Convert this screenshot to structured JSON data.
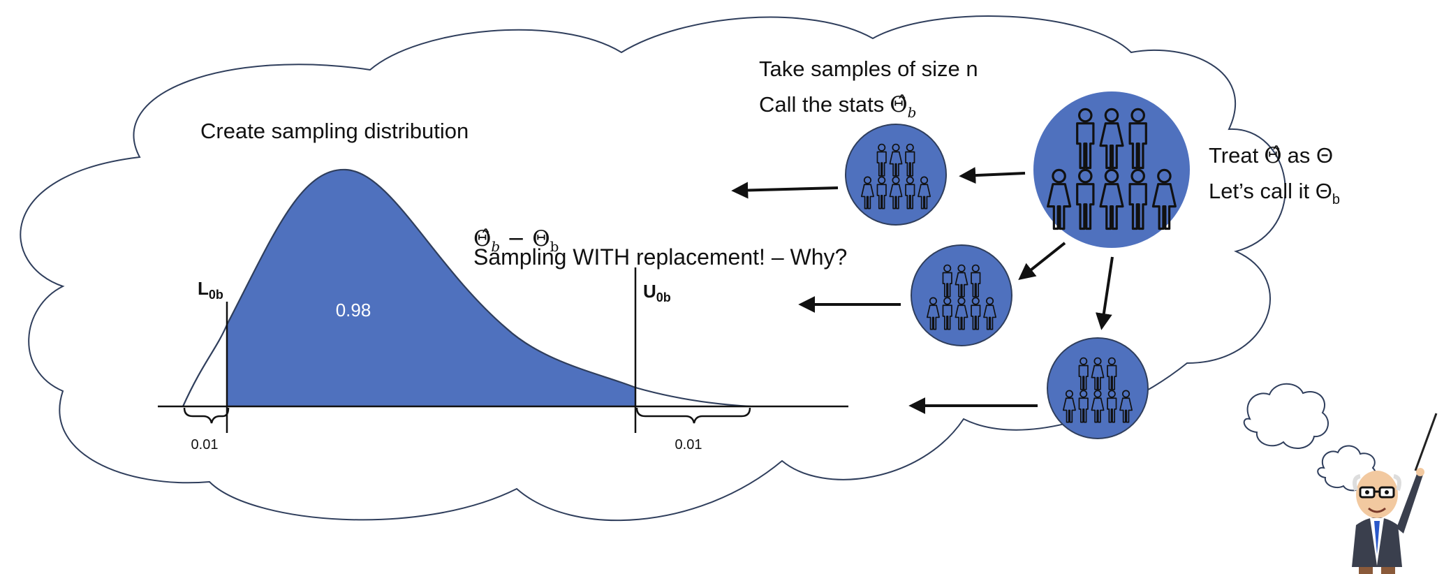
{
  "diagram": {
    "sampling_dist_title": "Create sampling distribution",
    "samples_line1": "Take samples of size n",
    "samples_line2_prefix": "Call the stats",
    "samples_line2_symbol": "Θ̂",
    "samples_line2_sub": "b",
    "treat_line1_prefix": "Treat",
    "treat_line1_hat": "Θ̂",
    "treat_line1_as": "as Θ",
    "treat_line2_prefix": "Let’s call it Θ",
    "treat_line2_sub": "b",
    "difference_hat": "Θ̂",
    "difference_hat_sub": "b",
    "difference_minus": "−",
    "difference_theta": "Θ",
    "difference_theta_sub": "b",
    "replacement_note": "Sampling WITH replacement! – Why?",
    "lower_label_main": "L",
    "lower_label_sub": "0b",
    "upper_label_main": "U",
    "upper_label_sub": "0b",
    "center_prob": "0.98",
    "left_tail_prob": "0.01",
    "right_tail_prob": "0.01"
  },
  "colors": {
    "fill_blue": "#4F71BE",
    "stroke_dark": "#2F3E5C",
    "text": "#111111"
  },
  "icons": {
    "population": "people-group-icon",
    "sample": "people-group-icon",
    "professor": "professor-icon"
  }
}
